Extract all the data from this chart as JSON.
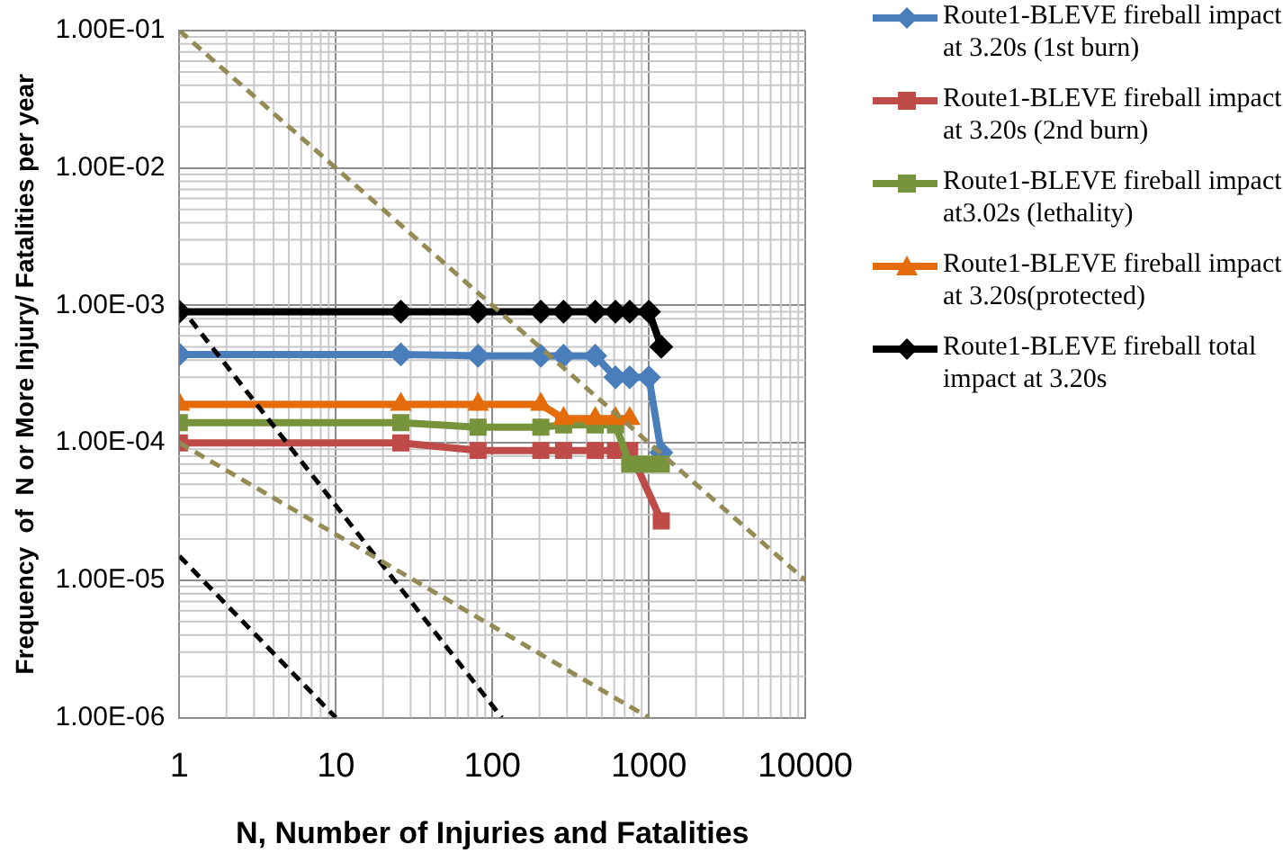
{
  "chart_data": {
    "type": "line",
    "xlabel": "N, Number of Injuries and Fatalities",
    "ylabel": "Frequency  of  N or More Injury/ Fatalities per year",
    "log": "xy",
    "grid": true,
    "legend": "right",
    "xlim": [
      1,
      10000
    ],
    "xticks": [
      1,
      10,
      100,
      1000,
      10000
    ],
    "ylim": [
      1e-06,
      0.1
    ],
    "yticks": [
      {
        "value": 0.1,
        "label": "1.00E-01"
      },
      {
        "value": 0.01,
        "label": "1.00E-02"
      },
      {
        "value": 0.001,
        "label": "1.00E-03"
      },
      {
        "value": 0.0001,
        "label": "1.00E-04"
      },
      {
        "value": 1e-05,
        "label": "1.00E-05"
      },
      {
        "value": 1e-06,
        "label": "1.00E-06"
      }
    ],
    "series": [
      {
        "name": "Route1-BLEVE fireball impact at 3.20s (1st burn)",
        "color": "#4a7ebb",
        "marker": "diamond",
        "x": [
          1,
          26,
          81,
          204,
          285,
          454,
          612,
          754,
          1000,
          1200
        ],
        "values": [
          0.00044,
          0.00044,
          0.00043,
          0.00043,
          0.00043,
          0.00043,
          0.0003,
          0.0003,
          0.0003,
          8.5e-05
        ]
      },
      {
        "name": "Route1-BLEVE fireball impact at 3.20s (2nd burn)",
        "color": "#be4b48",
        "marker": "square",
        "x": [
          1,
          26,
          81,
          204,
          285,
          454,
          612,
          754,
          1200
        ],
        "values": [
          0.0001,
          0.0001,
          8.8e-05,
          8.8e-05,
          8.8e-05,
          8.8e-05,
          8.8e-05,
          8.8e-05,
          2.7e-05
        ]
      },
      {
        "name": "Route1-BLEVE fireball impact at3.02s (lethality)",
        "color": "#77933c",
        "marker": "square",
        "x": [
          1,
          26,
          81,
          204,
          285,
          454,
          612,
          754,
          950,
          1200
        ],
        "values": [
          0.00014,
          0.00014,
          0.00013,
          0.00013,
          0.000135,
          0.000135,
          0.000135,
          7e-05,
          7e-05,
          7e-05
        ]
      },
      {
        "name": "Route1-BLEVE fireball impact at 3.20s(protected)",
        "color": "#e46c0a",
        "marker": "triangle",
        "x": [
          1,
          26,
          81,
          204,
          285,
          454,
          612,
          754
        ],
        "values": [
          0.00019,
          0.00019,
          0.00019,
          0.00019,
          0.00015,
          0.00015,
          0.00015,
          0.00015
        ]
      },
      {
        "name": "Route1-BLEVE fireball total impact at 3.20s",
        "color": "#000000",
        "marker": "diamond",
        "x": [
          1,
          26,
          81,
          204,
          285,
          454,
          612,
          754,
          1000,
          1200
        ],
        "values": [
          0.0009,
          0.0009,
          0.0009,
          0.0009,
          0.0009,
          0.0009,
          0.0009,
          0.0009,
          0.0009,
          0.0005
        ]
      },
      {
        "color": "#000000",
        "marker": "none",
        "line_style": "dashed",
        "x": [
          1,
          115
        ],
        "values": [
          0.001,
          1e-06
        ]
      },
      {
        "color": "#000000",
        "marker": "none",
        "line_style": "dashed",
        "x": [
          1,
          10
        ],
        "values": [
          1.5e-05,
          1e-06
        ]
      },
      {
        "color": "#948a54",
        "marker": "none",
        "line_style": "dashed",
        "x": [
          1,
          10000
        ],
        "values": [
          0.1,
          1e-05
        ]
      },
      {
        "color": "#948a54",
        "marker": "none",
        "line_style": "dashed",
        "x": [
          1,
          1000
        ],
        "values": [
          0.0001,
          1e-06
        ]
      }
    ]
  }
}
